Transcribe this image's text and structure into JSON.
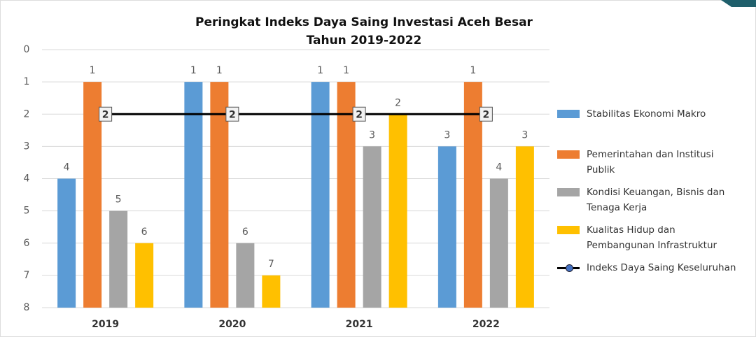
{
  "chart_data": {
    "type": "bar",
    "title": "Peringkat Indeks Daya Saing Investasi Aceh Besar",
    "subtitle": "Tahun 2019-2022",
    "categories": [
      "2019",
      "2020",
      "2021",
      "2022"
    ],
    "series": [
      {
        "name": "Stabilitas Ekonomi Makro",
        "color": "#5b9bd5",
        "values": [
          4,
          1,
          1,
          3
        ]
      },
      {
        "name": "Pemerintahan dan Institusi Publik",
        "color": "#ed7d31",
        "values": [
          1,
          1,
          1,
          1
        ]
      },
      {
        "name": "Kondisi Keuangan, Bisnis dan Tenaga Kerja",
        "color": "#a5a5a5",
        "values": [
          5,
          6,
          3,
          4
        ]
      },
      {
        "name": "Kualitas Hidup dan Pembangunan Infrastruktur",
        "color": "#ffc000",
        "values": [
          6,
          7,
          2,
          3
        ]
      },
      {
        "name": "Indeks Daya Saing Keseluruhan",
        "color": "#000000",
        "type": "line",
        "values": [
          2,
          2,
          2,
          2
        ]
      }
    ],
    "ylim": [
      0,
      8
    ],
    "yticks": [
      0,
      1,
      2,
      3,
      4,
      5,
      6,
      7,
      8
    ],
    "y_inverted": true,
    "grid": true,
    "legend": "right"
  }
}
